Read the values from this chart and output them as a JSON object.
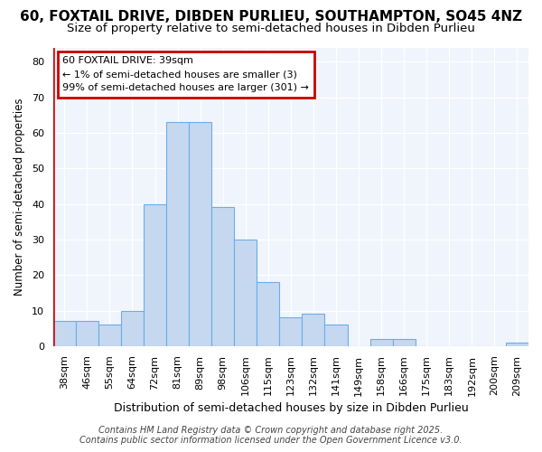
{
  "title1": "60, FOXTAIL DRIVE, DIBDEN PURLIEU, SOUTHAMPTON, SO45 4NZ",
  "title2": "Size of property relative to semi-detached houses in Dibden Purlieu",
  "xlabel": "Distribution of semi-detached houses by size in Dibden Purlieu",
  "ylabel": "Number of semi-detached properties",
  "categories": [
    "38sqm",
    "46sqm",
    "55sqm",
    "64sqm",
    "72sqm",
    "81sqm",
    "89sqm",
    "98sqm",
    "106sqm",
    "115sqm",
    "123sqm",
    "132sqm",
    "141sqm",
    "149sqm",
    "158sqm",
    "166sqm",
    "175sqm",
    "183sqm",
    "192sqm",
    "200sqm",
    "209sqm"
  ],
  "values": [
    7,
    7,
    6,
    10,
    40,
    63,
    63,
    39,
    30,
    18,
    8,
    9,
    6,
    0,
    2,
    2,
    0,
    0,
    0,
    0,
    1
  ],
  "bar_color": "#c5d8f0",
  "bar_edge_color": "#6aaee8",
  "highlight_color": "#cc0000",
  "annotation_text": "60 FOXTAIL DRIVE: 39sqm\n← 1% of semi-detached houses are smaller (3)\n99% of semi-detached houses are larger (301) →",
  "annotation_box_color": "#ffffff",
  "annotation_box_edge": "#cc0000",
  "ylim": [
    0,
    84
  ],
  "yticks": [
    0,
    10,
    20,
    30,
    40,
    50,
    60,
    70,
    80
  ],
  "bg_color": "#ffffff",
  "plot_bg_color": "#f0f4fc",
  "footer": "Contains HM Land Registry data © Crown copyright and database right 2025.\nContains public sector information licensed under the Open Government Licence v3.0.",
  "title1_fontsize": 11,
  "title2_fontsize": 9.5,
  "xlabel_fontsize": 9,
  "ylabel_fontsize": 8.5,
  "tick_fontsize": 8,
  "annotation_fontsize": 8,
  "footer_fontsize": 7
}
